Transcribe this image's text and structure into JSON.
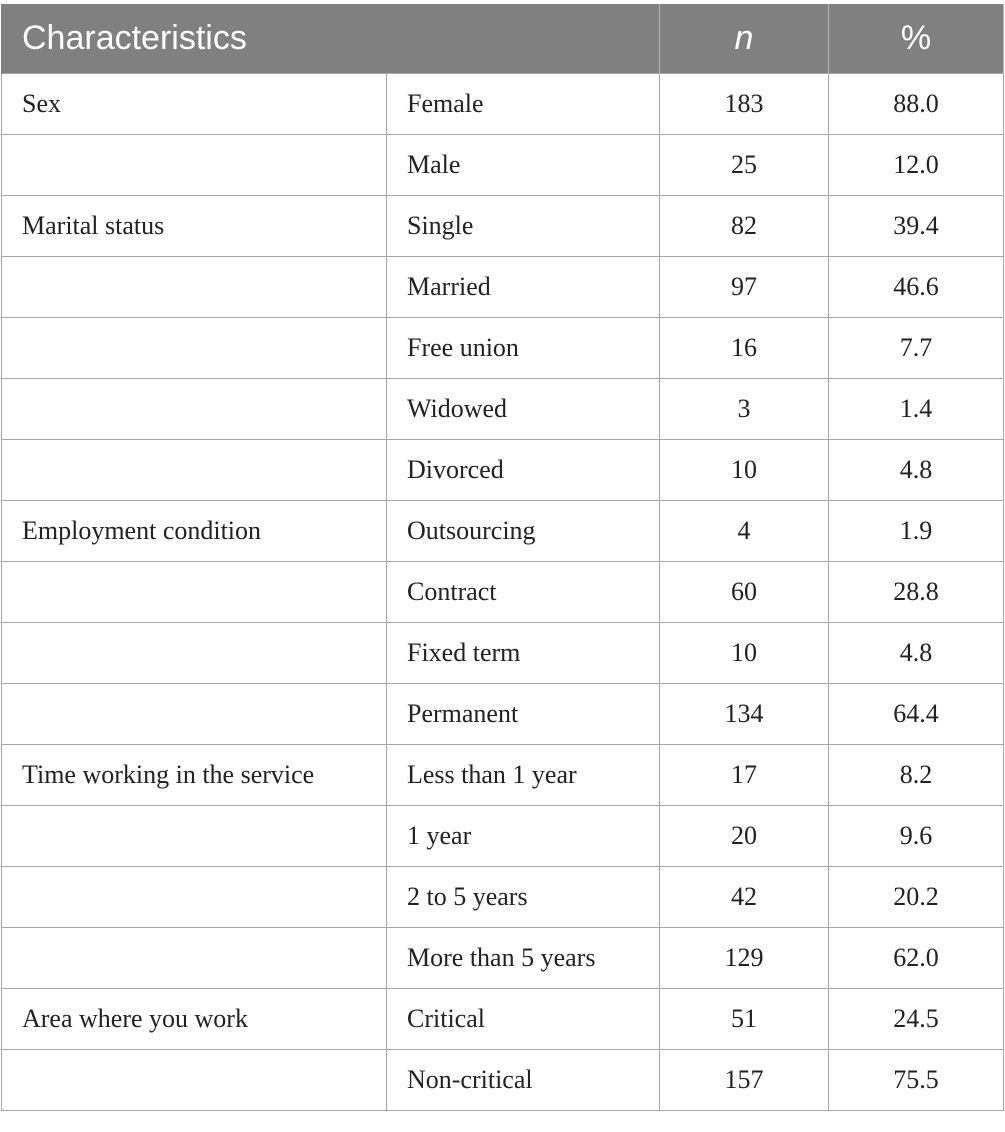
{
  "table": {
    "headers": [
      "Characteristics",
      "n",
      "%"
    ],
    "rows": [
      {
        "category": "Sex",
        "level": "Female",
        "n": "183",
        "pct": "88.0"
      },
      {
        "category": "",
        "level": "Male",
        "n": "25",
        "pct": "12.0"
      },
      {
        "category": "Marital status",
        "level": "Single",
        "n": "82",
        "pct": "39.4"
      },
      {
        "category": "",
        "level": "Married",
        "n": "97",
        "pct": "46.6"
      },
      {
        "category": "",
        "level": "Free union",
        "n": "16",
        "pct": "7.7"
      },
      {
        "category": "",
        "level": "Widowed",
        "n": "3",
        "pct": "1.4"
      },
      {
        "category": "",
        "level": "Divorced",
        "n": "10",
        "pct": "4.8"
      },
      {
        "category": "Employment condition",
        "level": "Outsourcing",
        "n": "4",
        "pct": "1.9"
      },
      {
        "category": "",
        "level": "Contract",
        "n": "60",
        "pct": "28.8"
      },
      {
        "category": "",
        "level": "Fixed term",
        "n": "10",
        "pct": "4.8"
      },
      {
        "category": "",
        "level": "Permanent",
        "n": "134",
        "pct": "64.4"
      },
      {
        "category": "Time working in the service",
        "level": "Less than 1 year",
        "n": "17",
        "pct": "8.2"
      },
      {
        "category": "",
        "level": "1 year",
        "n": "20",
        "pct": "9.6"
      },
      {
        "category": "",
        "level": "2 to 5 years",
        "n": "42",
        "pct": "20.2"
      },
      {
        "category": "",
        "level": "More than 5 years",
        "n": "129",
        "pct": "62.0"
      },
      {
        "category": "Area where you work",
        "level": "Critical",
        "n": "51",
        "pct": "24.5"
      },
      {
        "category": "",
        "level": "Non-critical",
        "n": "157",
        "pct": "75.5"
      }
    ]
  },
  "colors": {
    "header_bg": "#808080",
    "header_text": "#ffffff",
    "border": "#a6a6a6"
  }
}
